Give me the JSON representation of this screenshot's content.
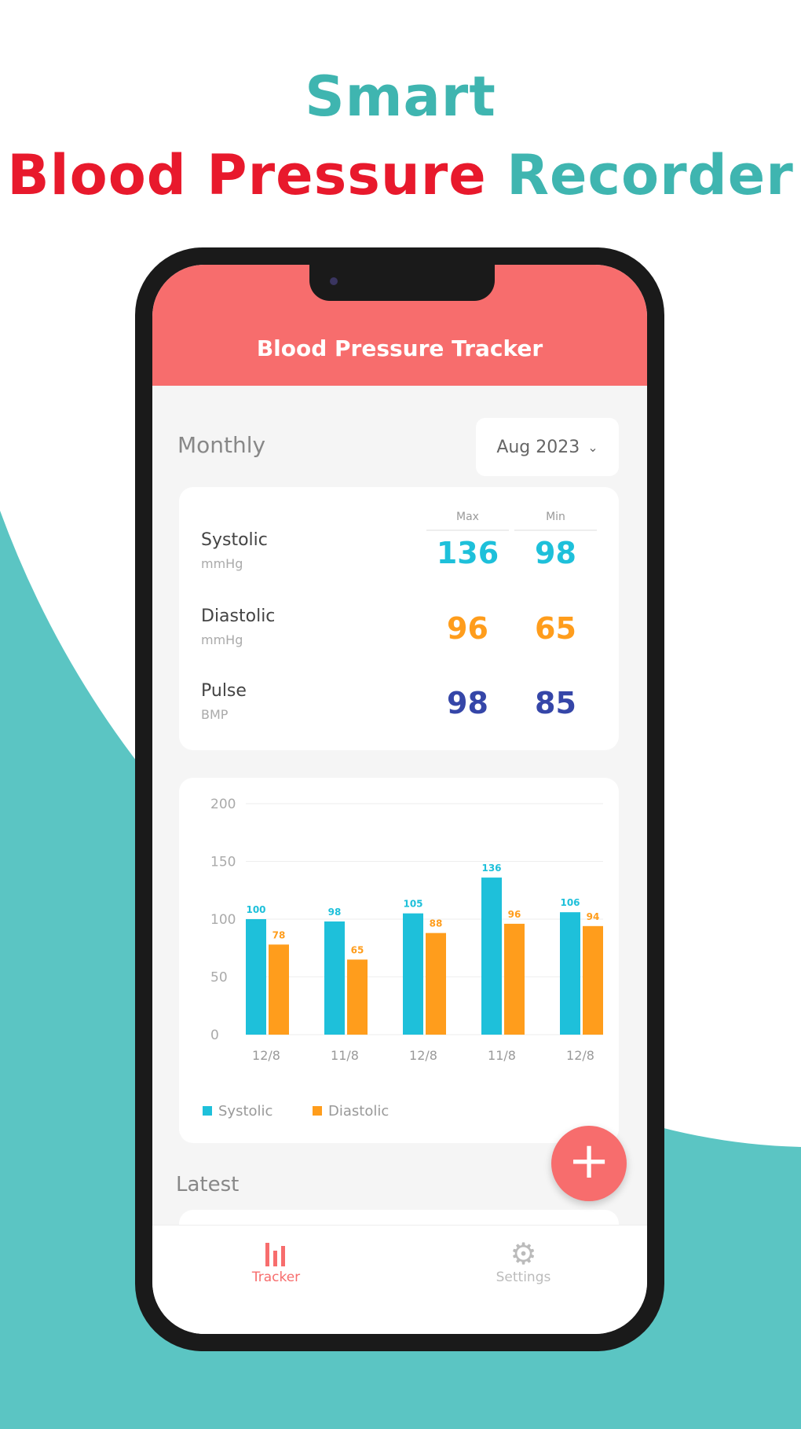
{
  "headline": {
    "line1": "Smart",
    "line2_red": "Blood Pressure",
    "line2_teal": "Recorder"
  },
  "colors": {
    "teal_bg": "#5bc5c3",
    "header": "#f76d6d",
    "systolic": "#1ec0da",
    "diastolic": "#ff9d1c",
    "pulse": "#3546a8"
  },
  "app": {
    "title": "Blood Pressure Tracker",
    "period_label": "Monthly",
    "month_select": "Aug 2023",
    "latest_label": "Latest"
  },
  "stats": {
    "columns": [
      "Max",
      "Min"
    ],
    "rows": [
      {
        "label": "Systolic",
        "unit": "mmHg",
        "max": "136",
        "min": "98"
      },
      {
        "label": "Diastolic",
        "unit": "mmHg",
        "max": "96",
        "min": "65"
      },
      {
        "label": "Pulse",
        "unit": "BMP",
        "max": "98",
        "min": "85"
      }
    ]
  },
  "chart_data": {
    "type": "bar",
    "categories": [
      "12/8",
      "11/8",
      "12/8",
      "11/8",
      "12/8"
    ],
    "series": [
      {
        "name": "Systolic",
        "values": [
          100,
          98,
          105,
          136,
          106
        ]
      },
      {
        "name": "Diastolic",
        "values": [
          78,
          65,
          88,
          96,
          94
        ]
      }
    ],
    "yticks": [
      "0",
      "50",
      "100",
      "150",
      "200"
    ],
    "ylim": [
      0,
      200
    ],
    "grid": true,
    "legend": "bottom-left"
  },
  "fab": {
    "label": "+"
  },
  "nav": [
    {
      "label": "Tracker",
      "icon": "bar-chart-icon",
      "active": true
    },
    {
      "label": "Settings",
      "icon": "gear-icon",
      "active": false
    }
  ]
}
